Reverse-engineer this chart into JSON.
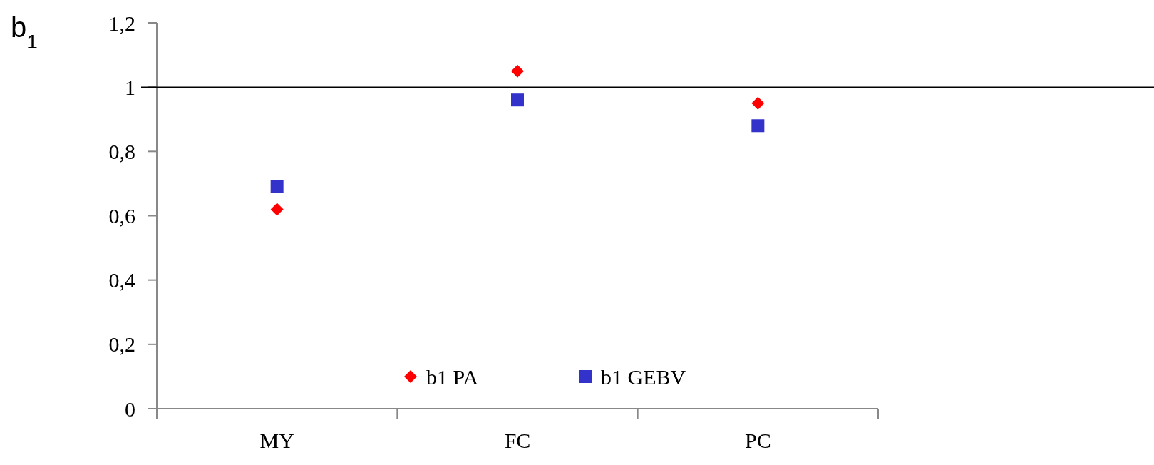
{
  "chart_data": {
    "type": "scatter",
    "ylabel": "b$_{1}$",
    "categories": [
      "MY",
      "FC",
      "PC"
    ],
    "series": [
      {
        "name": "b1 PA",
        "color": "#ff0000",
        "marker": "diamond",
        "values": [
          0.62,
          1.05,
          0.95
        ]
      },
      {
        "name": "b1 GEBV",
        "color": "#3333cc",
        "marker": "square",
        "values": [
          0.69,
          0.96,
          0.88
        ]
      }
    ],
    "ylim": [
      0,
      1.2
    ],
    "yticks": [
      {
        "value": 0,
        "label": "0"
      },
      {
        "value": 0.2,
        "label": "0,2"
      },
      {
        "value": 0.4,
        "label": "0,4"
      },
      {
        "value": 0.6,
        "label": "0,6"
      },
      {
        "value": 0.8,
        "label": "0,8"
      },
      {
        "value": 1,
        "label": "1"
      },
      {
        "value": 1.2,
        "label": "1,2"
      }
    ],
    "ref_lines": [
      {
        "axis": "y",
        "value": 1,
        "color": "#000000"
      }
    ],
    "grid": false,
    "legend": "bottom"
  }
}
